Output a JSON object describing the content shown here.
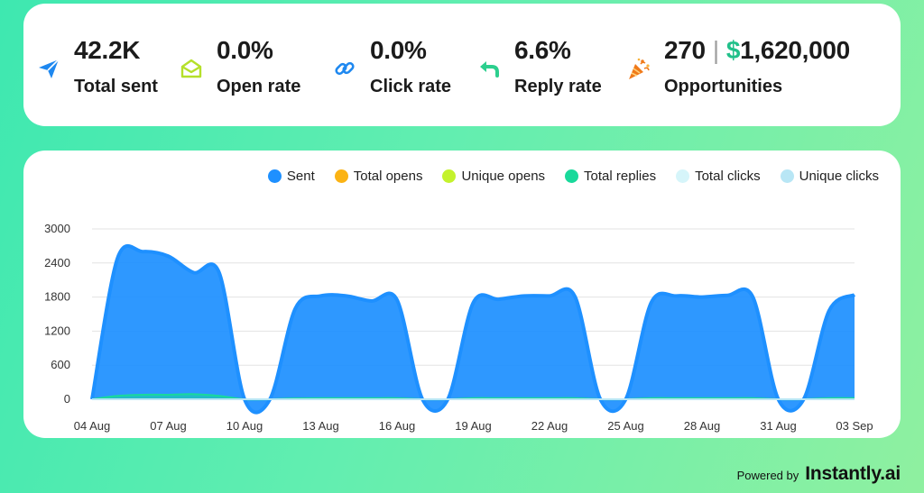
{
  "stats": [
    {
      "icon": "send-icon",
      "value": "42.2K",
      "label": "Total sent",
      "color": "#1e88f0"
    },
    {
      "icon": "open-envelope-icon",
      "value": "0.0%",
      "label": "Open rate",
      "color": "#b5e02a"
    },
    {
      "icon": "link-icon",
      "value": "0.0%",
      "label": "Click rate",
      "color": "#1e88f0"
    },
    {
      "icon": "reply-icon",
      "value": "6.6%",
      "label": "Reply rate",
      "color": "#2ccf8e"
    }
  ],
  "opportunities": {
    "count": "270",
    "separator": "|",
    "currency": "$",
    "amount": "1,620,000",
    "label": "Opportunities",
    "icon": "party-popper-icon",
    "color": "#f07a1a"
  },
  "legend": [
    {
      "label": "Sent",
      "color": "#1e90ff"
    },
    {
      "label": "Total opens",
      "color": "#fbb314"
    },
    {
      "label": "Unique opens",
      "color": "#c4f22d"
    },
    {
      "label": "Total replies",
      "color": "#19d99b"
    },
    {
      "label": "Total clicks",
      "color": "#d6f5fa"
    },
    {
      "label": "Unique clicks",
      "color": "#b8e6f5"
    }
  ],
  "chart_data": {
    "type": "area",
    "x": [
      "04 Aug",
      "05 Aug",
      "06 Aug",
      "07 Aug",
      "08 Aug",
      "09 Aug",
      "10 Aug",
      "11 Aug",
      "12 Aug",
      "13 Aug",
      "14 Aug",
      "15 Aug",
      "16 Aug",
      "17 Aug",
      "18 Aug",
      "19 Aug",
      "20 Aug",
      "21 Aug",
      "22 Aug",
      "23 Aug",
      "24 Aug",
      "25 Aug",
      "26 Aug",
      "27 Aug",
      "28 Aug",
      "29 Aug",
      "30 Aug",
      "31 Aug",
      "01 Sep",
      "02 Sep",
      "03 Sep"
    ],
    "xtick_labels": [
      "04 Aug",
      "07 Aug",
      "10 Aug",
      "13 Aug",
      "16 Aug",
      "19 Aug",
      "22 Aug",
      "25 Aug",
      "28 Aug",
      "31 Aug",
      "03 Sep"
    ],
    "yticks": [
      0,
      600,
      1200,
      1800,
      2400,
      3000
    ],
    "ylim": [
      0,
      3000
    ],
    "grid": true,
    "legend_position": "top-right",
    "series": [
      {
        "name": "Sent",
        "color": "#1e90ff",
        "values": [
          0,
          2480,
          2600,
          2520,
          2230,
          2230,
          0,
          0,
          1600,
          1820,
          1820,
          1730,
          1750,
          0,
          0,
          1700,
          1760,
          1820,
          1820,
          1810,
          0,
          0,
          1700,
          1820,
          1800,
          1830,
          1800,
          0,
          0,
          1560,
          1840
        ]
      },
      {
        "name": "Total opens",
        "color": "#fbb314",
        "values": [
          0,
          0,
          0,
          0,
          0,
          0,
          0,
          0,
          0,
          0,
          0,
          0,
          0,
          0,
          0,
          0,
          0,
          0,
          0,
          0,
          0,
          0,
          0,
          0,
          0,
          0,
          0,
          0,
          0,
          0,
          0
        ]
      },
      {
        "name": "Unique opens",
        "color": "#c4f22d",
        "values": [
          0,
          0,
          0,
          0,
          0,
          0,
          0,
          0,
          0,
          0,
          0,
          0,
          0,
          0,
          0,
          0,
          0,
          0,
          0,
          0,
          0,
          0,
          0,
          0,
          0,
          0,
          0,
          0,
          0,
          0,
          0
        ]
      },
      {
        "name": "Total replies",
        "color": "#19d99b",
        "values": [
          0,
          60,
          80,
          80,
          90,
          60,
          0,
          0,
          15,
          20,
          20,
          20,
          20,
          0,
          0,
          20,
          20,
          20,
          20,
          20,
          0,
          0,
          20,
          20,
          20,
          20,
          20,
          0,
          0,
          20,
          20
        ]
      },
      {
        "name": "Total clicks",
        "color": "#d6f5fa",
        "values": [
          0,
          0,
          0,
          0,
          0,
          0,
          0,
          0,
          0,
          0,
          0,
          0,
          0,
          0,
          0,
          0,
          0,
          0,
          0,
          0,
          0,
          0,
          0,
          0,
          0,
          0,
          0,
          0,
          0,
          0,
          0
        ]
      },
      {
        "name": "Unique clicks",
        "color": "#b8e6f5",
        "values": [
          0,
          0,
          0,
          0,
          0,
          0,
          0,
          0,
          0,
          0,
          0,
          0,
          0,
          0,
          0,
          0,
          0,
          0,
          0,
          0,
          0,
          0,
          0,
          0,
          0,
          0,
          0,
          0,
          0,
          0,
          0
        ]
      }
    ]
  },
  "footer": {
    "powered_by": "Powered by",
    "brand": "Instantly.ai"
  }
}
